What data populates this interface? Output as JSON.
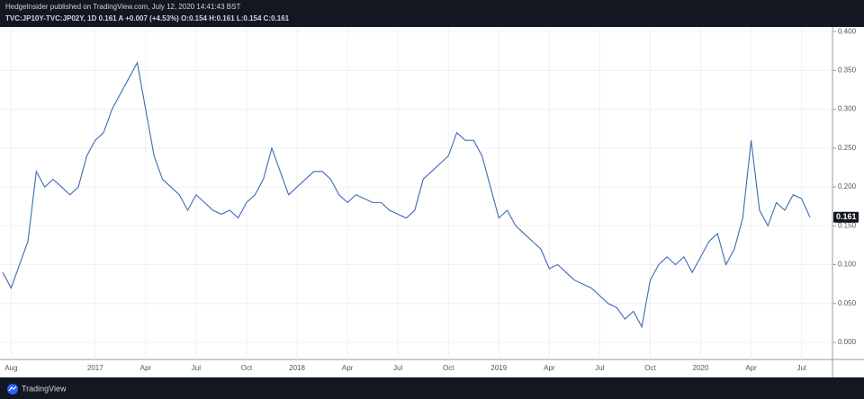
{
  "chart_data": {
    "type": "line",
    "subtitle": "HedgeInsider published on TradingView.com, July 12, 2020 14:41:43 BST",
    "title": "TVC:JP10Y-TVC:JP02Y, 1D 0.161 A +0.007 (+4.53%) O:0.154 H:0.161 L:0.154 C:0.161",
    "watermark": "TradingView",
    "categories": [
      null,
      "Aug",
      null,
      null,
      null,
      null,
      null,
      null,
      null,
      null,
      null,
      "2017",
      null,
      null,
      null,
      null,
      null,
      "Apr",
      null,
      null,
      null,
      null,
      null,
      "Jul",
      null,
      null,
      null,
      null,
      null,
      "Oct",
      null,
      null,
      null,
      null,
      null,
      "2018",
      null,
      null,
      null,
      null,
      null,
      "Apr",
      null,
      null,
      null,
      null,
      null,
      "Jul",
      null,
      null,
      null,
      null,
      null,
      "Oct",
      null,
      null,
      null,
      null,
      null,
      "2019",
      null,
      null,
      null,
      null,
      null,
      "Apr",
      null,
      null,
      null,
      null,
      null,
      "Jul",
      null,
      null,
      null,
      null,
      null,
      "Oct",
      null,
      null,
      null,
      null,
      null,
      "2020",
      null,
      null,
      null,
      null,
      null,
      "Apr",
      null,
      null,
      null,
      null,
      null,
      "Jul",
      null
    ],
    "series": [
      {
        "name": "TVC:JP10Y-TVC:JP02Y",
        "color": "#3d6ab5",
        "values": [
          0.09,
          0.07,
          0.1,
          0.13,
          0.22,
          0.2,
          0.21,
          0.2,
          0.19,
          0.2,
          0.24,
          0.26,
          0.27,
          0.3,
          0.32,
          0.34,
          0.36,
          0.3,
          0.24,
          0.21,
          0.2,
          0.19,
          0.17,
          0.19,
          0.18,
          0.17,
          0.165,
          0.17,
          0.16,
          0.18,
          0.19,
          0.21,
          0.25,
          0.22,
          0.19,
          0.2,
          0.21,
          0.22,
          0.22,
          0.21,
          0.19,
          0.18,
          0.19,
          0.185,
          0.18,
          0.18,
          0.17,
          0.165,
          0.16,
          0.17,
          0.21,
          0.22,
          0.23,
          0.24,
          0.27,
          0.26,
          0.26,
          0.24,
          0.2,
          0.16,
          0.17,
          0.15,
          0.14,
          0.13,
          0.12,
          0.095,
          0.1,
          0.09,
          0.08,
          0.075,
          0.07,
          0.06,
          0.05,
          0.045,
          0.03,
          0.04,
          0.02,
          0.08,
          0.1,
          0.11,
          0.1,
          0.11,
          0.09,
          0.11,
          0.13,
          0.14,
          0.1,
          0.12,
          0.16,
          0.26,
          0.17,
          0.15,
          0.18,
          0.17,
          0.19,
          0.185,
          0.161
        ]
      }
    ],
    "ylim": [
      -0.022,
      0.406
    ],
    "yticks": [
      {
        "value": 0,
        "label": "0.000"
      },
      {
        "value": 0.05,
        "label": "0.050"
      },
      {
        "value": 0.1,
        "label": "0.100"
      },
      {
        "value": 0.15,
        "label": "0.150"
      },
      {
        "value": 0.2,
        "label": "0.200"
      },
      {
        "value": 0.25,
        "label": "0.250"
      },
      {
        "value": 0.3,
        "label": "0.300"
      },
      {
        "value": 0.35,
        "label": "0.350"
      },
      {
        "value": 0.4,
        "label": "0.400"
      }
    ],
    "grid": true
  }
}
